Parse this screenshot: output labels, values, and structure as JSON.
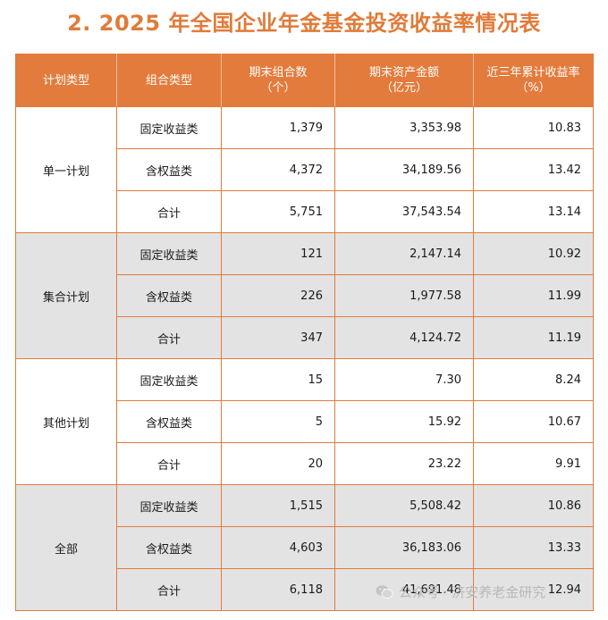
{
  "title": "2. 2025 年全国企业年金基金投资收益率情况表",
  "headers": {
    "plan_type": "计划类型",
    "portfolio_type": "组合类型",
    "portfolio_count": [
      "期末组合数",
      "（个）"
    ],
    "asset_amount": [
      "期末资产金额",
      "（亿元）"
    ],
    "return_rate": [
      "近三年累计收益率",
      "（%）"
    ]
  },
  "groups": [
    {
      "plan": "单一计划",
      "rows": [
        {
          "portfolio": "固定收益类",
          "count": "1,379",
          "assets": "3,353.98",
          "rate": "10.83"
        },
        {
          "portfolio": "含权益类",
          "count": "4,372",
          "assets": "34,189.56",
          "rate": "13.42"
        },
        {
          "portfolio": "合计",
          "count": "5,751",
          "assets": "37,543.54",
          "rate": "13.14"
        }
      ]
    },
    {
      "plan": "集合计划",
      "rows": [
        {
          "portfolio": "固定收益类",
          "count": "121",
          "assets": "2,147.14",
          "rate": "10.92"
        },
        {
          "portfolio": "含权益类",
          "count": "226",
          "assets": "1,977.58",
          "rate": "11.99"
        },
        {
          "portfolio": "合计",
          "count": "347",
          "assets": "4,124.72",
          "rate": "11.19"
        }
      ]
    },
    {
      "plan": "其他计划",
      "rows": [
        {
          "portfolio": "固定收益类",
          "count": "15",
          "assets": "7.30",
          "rate": "8.24"
        },
        {
          "portfolio": "含权益类",
          "count": "5",
          "assets": "15.92",
          "rate": "10.67"
        },
        {
          "portfolio": "合计",
          "count": "20",
          "assets": "23.22",
          "rate": "9.91"
        }
      ]
    },
    {
      "plan": "全部",
      "rows": [
        {
          "portfolio": "固定收益类",
          "count": "1,515",
          "assets": "5,508.42",
          "rate": "10.86"
        },
        {
          "portfolio": "含权益类",
          "count": "4,603",
          "assets": "36,183.06",
          "rate": "13.33"
        },
        {
          "portfolio": "合计",
          "count": "6,118",
          "assets": "41,691.48",
          "rate": "12.94"
        }
      ]
    }
  ],
  "watermark": "公众号 · 济安养老金研究",
  "colors": {
    "accent": "#e37b3c",
    "title": "#e07b39",
    "shaded_row": "#e3e3e3"
  }
}
